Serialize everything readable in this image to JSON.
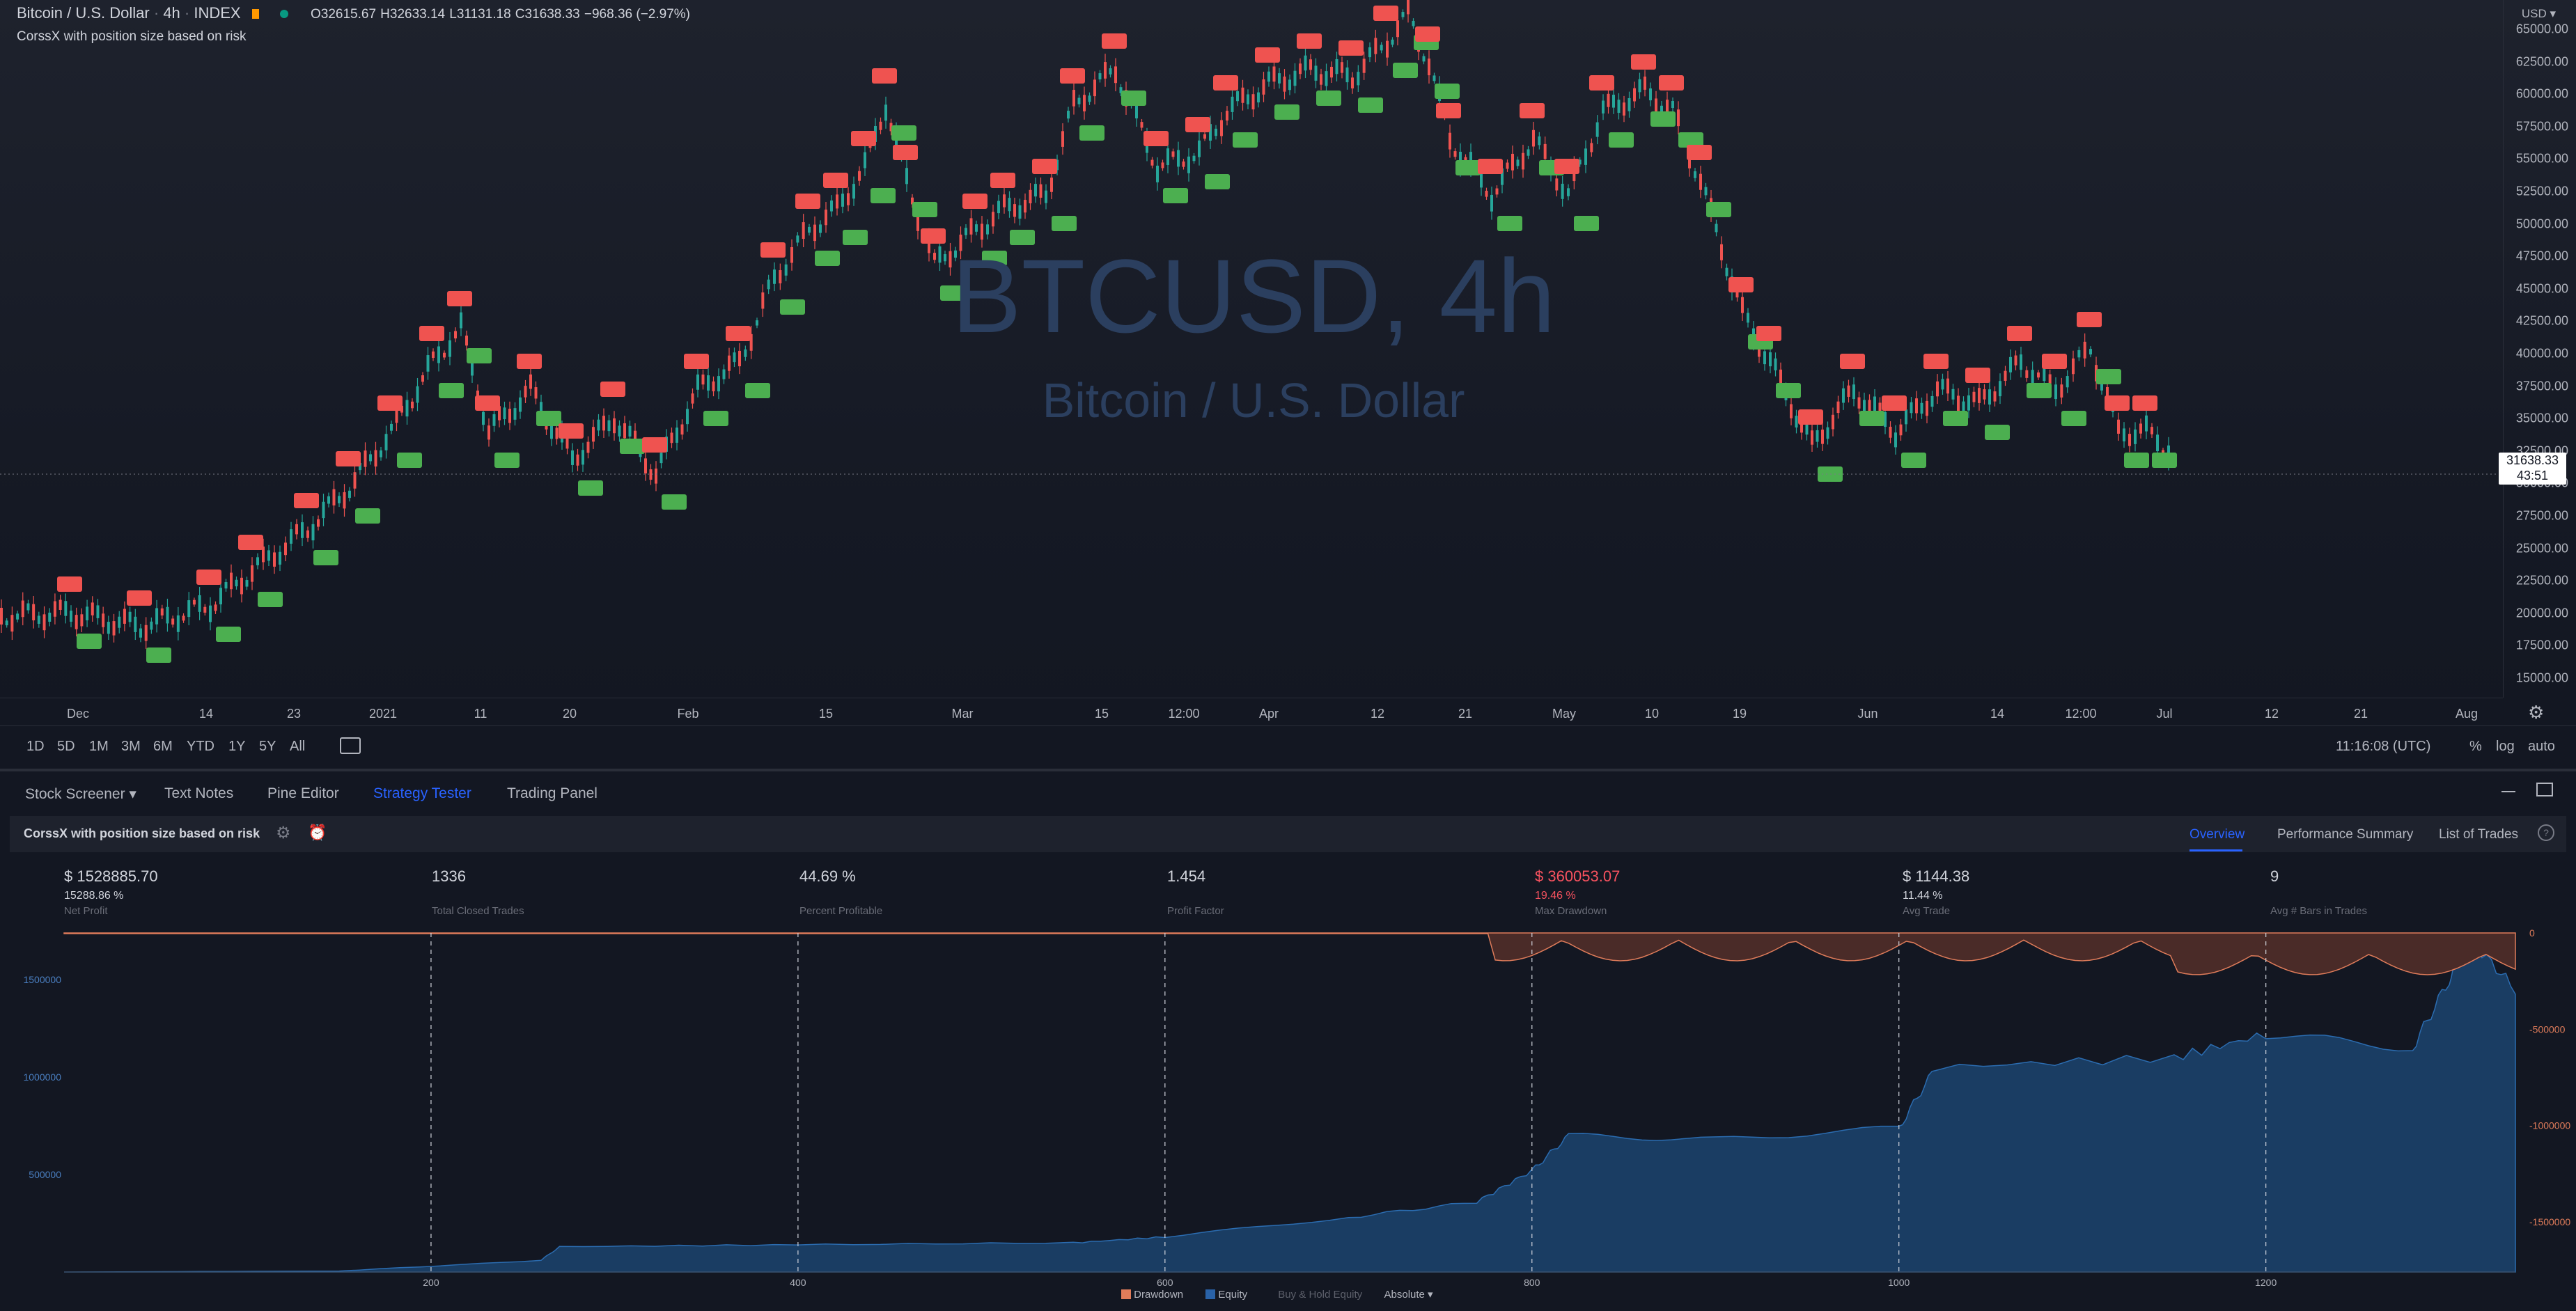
{
  "legend": {
    "title": "Bitcoin / U.S. Dollar",
    "interval": "4h",
    "exchange": "INDEX",
    "open": "O32615.67",
    "high": "H32633.14",
    "low": "L31131.18",
    "close": "C31638.33",
    "change": "−968.36 (−2.97%)",
    "indicator": "CorssX with position size based on risk"
  },
  "watermark": {
    "symbol": "BTCUSD, 4h",
    "name": "Bitcoin / U.S. Dollar"
  },
  "price_axis": {
    "currency": "USD",
    "ticks": [
      "65000.00",
      "62500.00",
      "60000.00",
      "57500.00",
      "55000.00",
      "52500.00",
      "50000.00",
      "47500.00",
      "45000.00",
      "42500.00",
      "40000.00",
      "37500.00",
      "35000.00",
      "32500.00",
      "30000.00",
      "27500.00",
      "25000.00",
      "22500.00",
      "20000.00",
      "17500.00",
      "15000.00"
    ],
    "last_price": "31638.33",
    "countdown": "43:51"
  },
  "time_axis": {
    "ticks": [
      "Dec",
      "14",
      "23",
      "2021",
      "11",
      "20",
      "Feb",
      "15",
      "Mar",
      "15",
      "12:00",
      "Apr",
      "12",
      "21",
      "May",
      "10",
      "19",
      "Jun",
      "14",
      "12:00",
      "Jul",
      "12",
      "21",
      "Aug"
    ]
  },
  "timeframes": [
    "1D",
    "5D",
    "1M",
    "3M",
    "6M",
    "YTD",
    "1Y",
    "5Y",
    "All"
  ],
  "toolbar": {
    "clock": "11:16:08 (UTC)",
    "percent": "%",
    "log": "log",
    "auto": "auto"
  },
  "panel_tabs": [
    "Stock Screener",
    "Text Notes",
    "Pine Editor",
    "Strategy Tester",
    "Trading Panel"
  ],
  "strategy": {
    "name": "CorssX with position size based on risk",
    "tabs": [
      "Overview",
      "Performance Summary",
      "List of Trades"
    ]
  },
  "stats": [
    {
      "value": "$ 1528885.70",
      "sub": "15288.86 %",
      "label": "Net Profit"
    },
    {
      "value": "1336",
      "sub": "",
      "label": "Total Closed Trades"
    },
    {
      "value": "44.69 %",
      "sub": "",
      "label": "Percent Profitable"
    },
    {
      "value": "1.454",
      "sub": "",
      "label": "Profit Factor"
    },
    {
      "value": "$ 360053.07",
      "sub": "19.46 %",
      "label": "Max Drawdown"
    },
    {
      "value": "$ 1144.38",
      "sub": "11.44 %",
      "label": "Avg Trade"
    },
    {
      "value": "9",
      "sub": "",
      "label": "Avg # Bars in Trades"
    }
  ],
  "equity_axis_left": [
    "1500000",
    "1000000",
    "500000"
  ],
  "drawdown_axis_right": [
    "0",
    "-500000",
    "-1000000",
    "-1500000"
  ],
  "trade_axis": [
    "200",
    "400",
    "600",
    "800",
    "1000",
    "1200"
  ],
  "bottom_legend": {
    "drawdown": "Drawdown",
    "equity": "Equity",
    "buyhold": "Buy & Hold Equity",
    "mode": "Absolute"
  },
  "colors": {
    "buy": "#26a69a",
    "sell": "#ef5350",
    "equity": "#1e4f80",
    "drawdown": "#f7525f",
    "accent": "#2962ff"
  }
}
